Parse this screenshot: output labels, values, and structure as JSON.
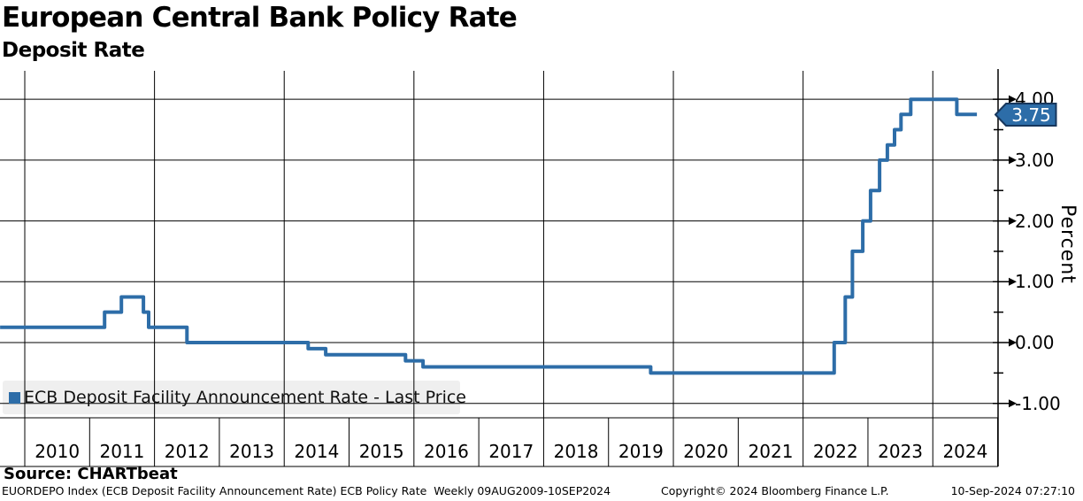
{
  "title": "European Central Bank Policy Rate",
  "subtitle": "Deposit Rate",
  "legend": {
    "label": "ECB Deposit Facility Announcement Rate - Last Price",
    "marker_color": "#2D6DA8",
    "background": "#EFEFEF"
  },
  "last_price_badge": {
    "value": "3.75",
    "fill": "#2D6DA8",
    "border": "#16365C",
    "text_color": "#FFFFFF"
  },
  "y_axis": {
    "label": "Percent"
  },
  "source": "Source: CHARTbeat",
  "footer": {
    "left": "EUORDEPO Index (ECB Deposit Facility Announcement Rate) ECB Policy Rate  Weekly 09AUG2009-10SEP2024",
    "center": "Copyright© 2024 Bloomberg Finance L.P.",
    "right": "10-Sep-2024 07:27:10"
  },
  "chart_data": {
    "type": "line",
    "subtype": "step",
    "title": "European Central Bank Policy Rate",
    "subtitle": "Deposit Rate",
    "ylabel": "Percent",
    "xlim": [
      2009.618,
      2025.006
    ],
    "ylim": [
      -1.237,
      4.468
    ],
    "yticks": [
      4.0,
      3.0,
      2.0,
      1.0,
      0.0,
      -1.0
    ],
    "ytick_labels": [
      "4.00",
      "3.00",
      "2.00",
      "1.00",
      "0.00",
      "-1.00"
    ],
    "yticks_minor": [
      3.5,
      2.5,
      1.5,
      0.5,
      -0.5
    ],
    "x_gridlines": [
      2010,
      2012,
      2014,
      2016,
      2018,
      2020,
      2022,
      2024
    ],
    "year_labels": [
      2010,
      2011,
      2012,
      2013,
      2014,
      2015,
      2016,
      2017,
      2018,
      2019,
      2020,
      2021,
      2022,
      2023,
      2024
    ],
    "grid": true,
    "legend_position": "bottom-left",
    "series": [
      {
        "name": "ECB Deposit Facility Announcement Rate - Last Price",
        "color": "#2D6DA8",
        "steps": [
          [
            2009.62,
            0.25
          ],
          [
            2011.23,
            0.5
          ],
          [
            2011.49,
            0.75
          ],
          [
            2011.83,
            0.5
          ],
          [
            2011.91,
            0.25
          ],
          [
            2012.5,
            0.0
          ],
          [
            2014.37,
            -0.1
          ],
          [
            2014.64,
            -0.2
          ],
          [
            2015.87,
            -0.3
          ],
          [
            2016.14,
            -0.4
          ],
          [
            2019.65,
            -0.5
          ],
          [
            2022.48,
            0.0
          ],
          [
            2022.65,
            0.75
          ],
          [
            2022.76,
            1.5
          ],
          [
            2022.92,
            2.0
          ],
          [
            2023.04,
            2.5
          ],
          [
            2023.18,
            3.0
          ],
          [
            2023.3,
            3.25
          ],
          [
            2023.41,
            3.5
          ],
          [
            2023.51,
            3.75
          ],
          [
            2023.66,
            4.0
          ],
          [
            2024.37,
            3.75
          ]
        ],
        "end_x": 2024.68,
        "last_value": 3.75
      }
    ]
  }
}
